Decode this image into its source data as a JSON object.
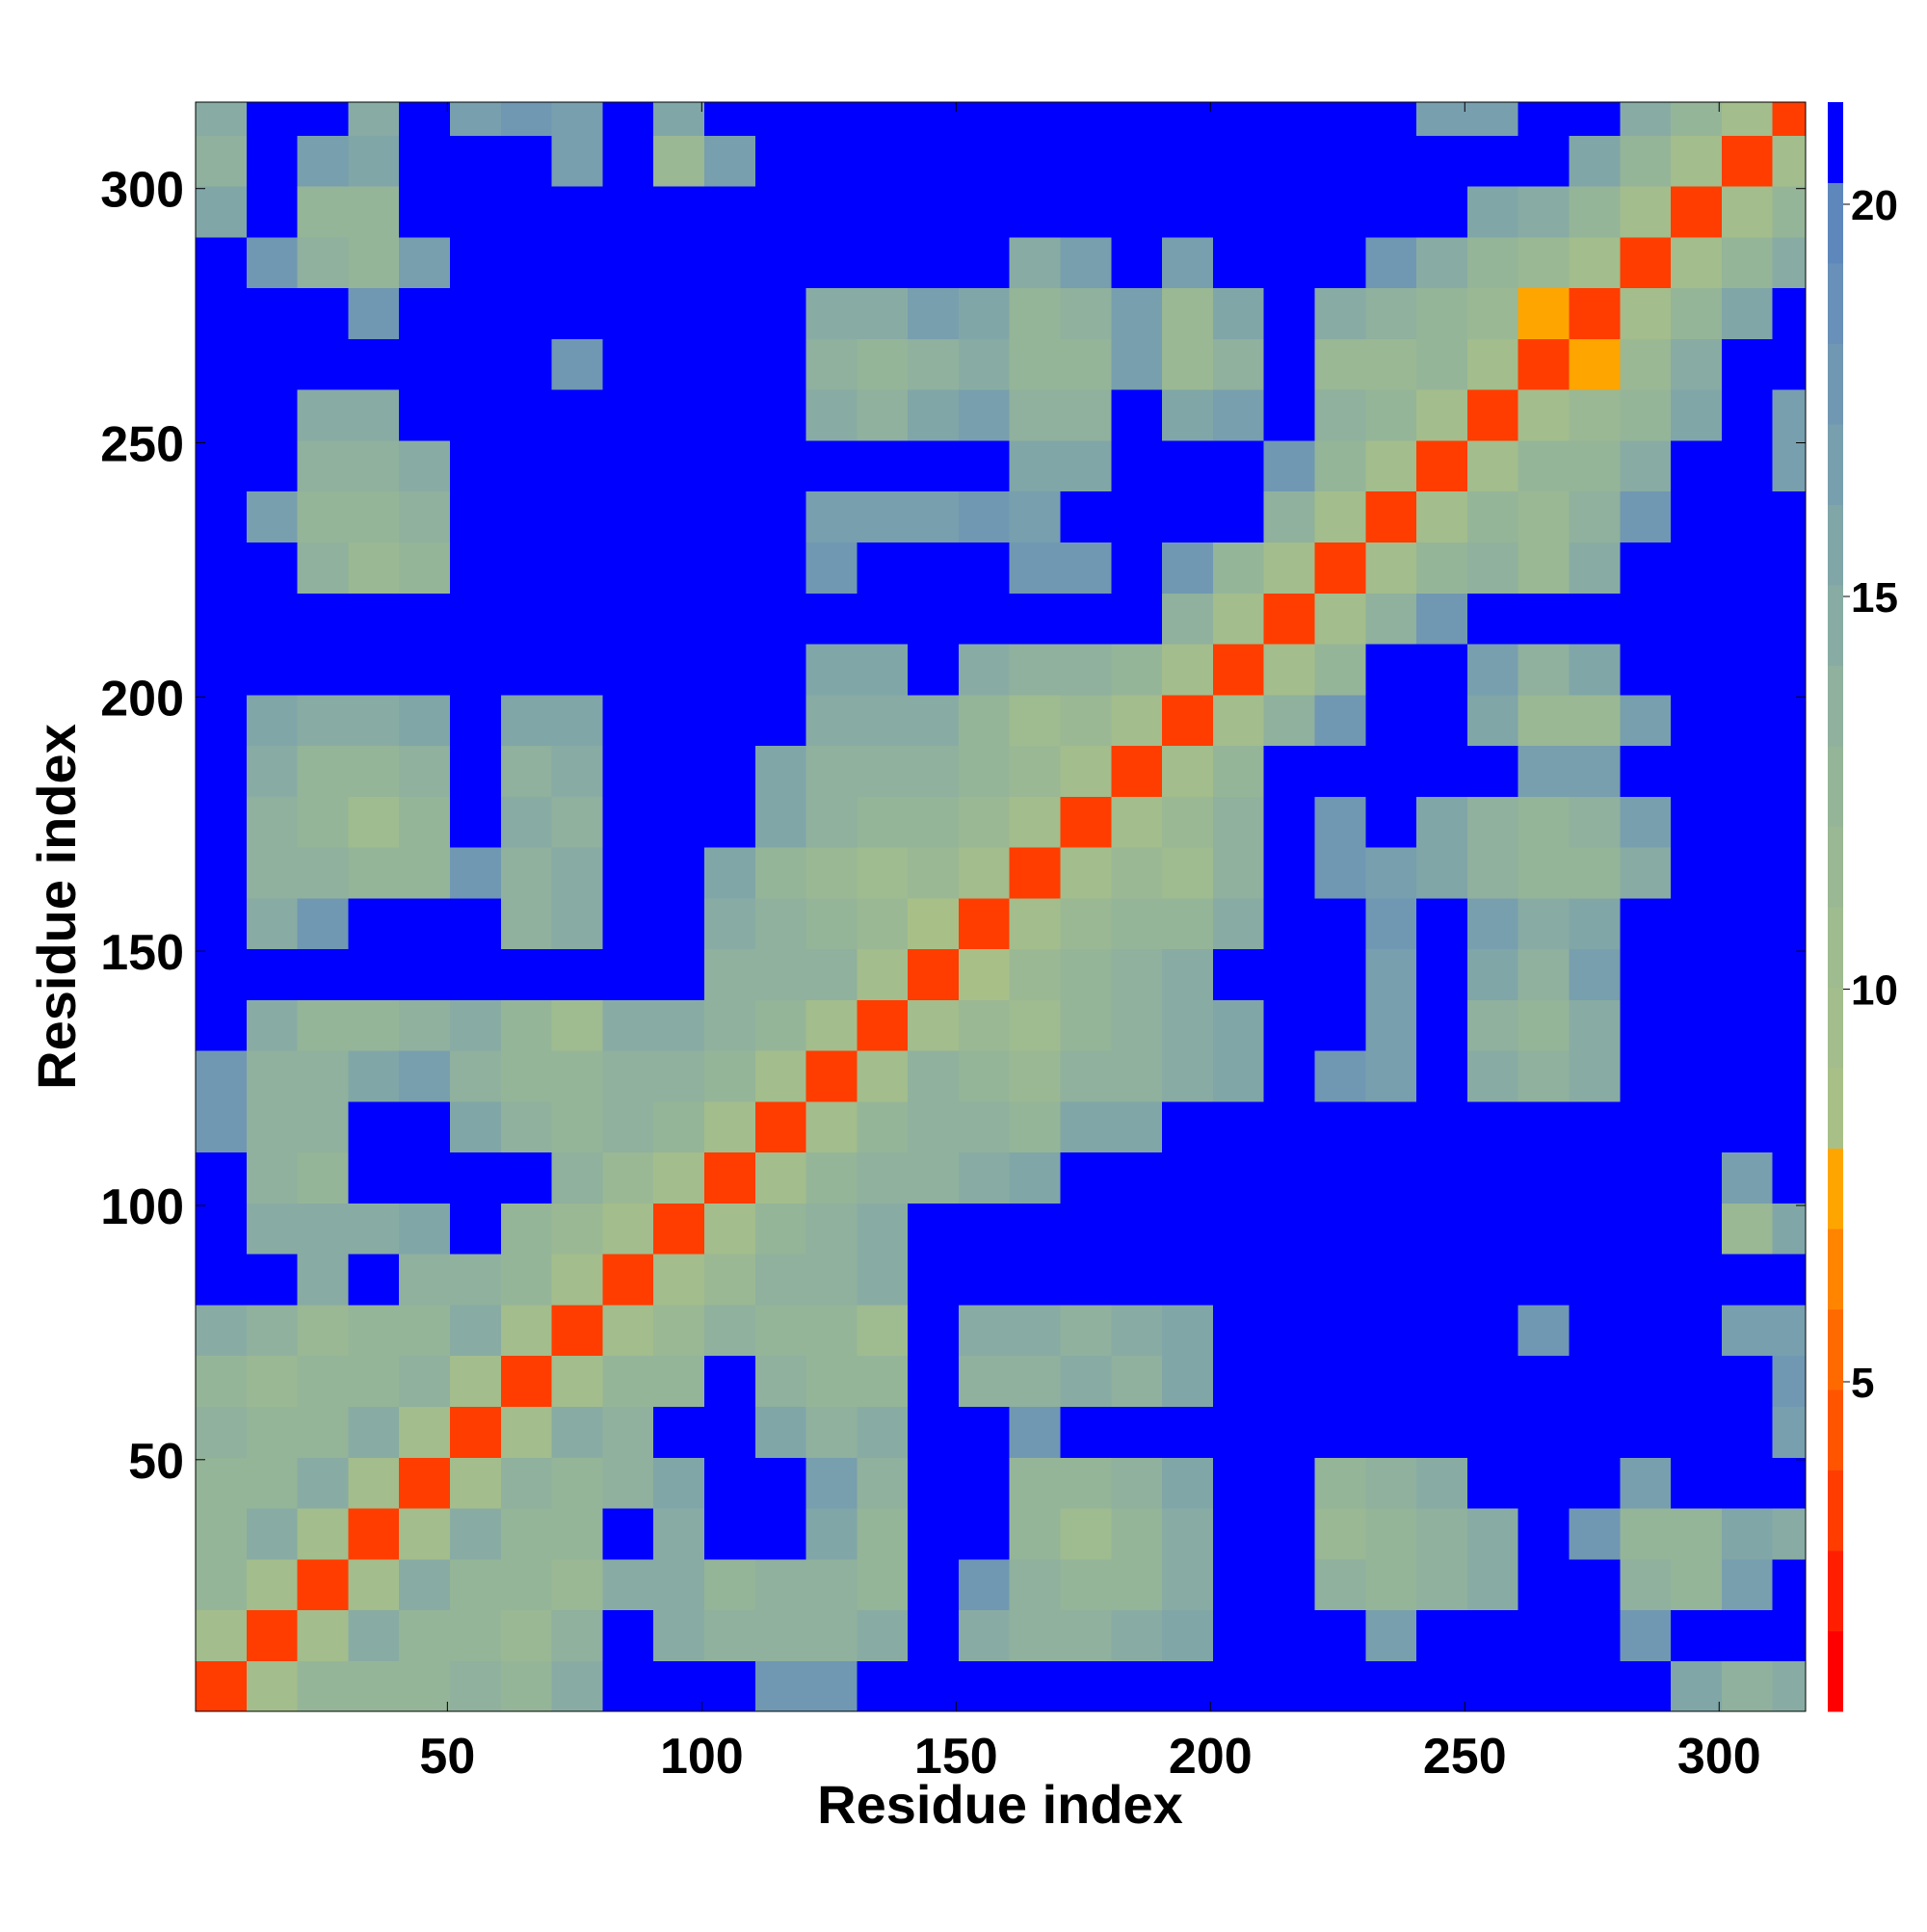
{
  "chart_data": {
    "type": "heatmap",
    "xlabel": "Residue index",
    "ylabel": "Residue index",
    "symmetric": true,
    "x": [
      5.5,
      15.5,
      25.5,
      35.5,
      45.5,
      55.5,
      65.5,
      75.5,
      85.5,
      95.5,
      105.5,
      115.5,
      125.5,
      135.5,
      145.5,
      155.5,
      165.5,
      175.5,
      185.5,
      195.5,
      205.5,
      215.5,
      225.5,
      235.5,
      245.5,
      255.5,
      265.5,
      275.5,
      285.5,
      295.5,
      305.5,
      315.5
    ],
    "y": [
      5.5,
      15.5,
      25.5,
      35.5,
      45.5,
      55.5,
      65.5,
      75.5,
      85.5,
      95.5,
      105.5,
      115.5,
      125.5,
      135.5,
      145.5,
      155.5,
      165.5,
      175.5,
      185.5,
      195.5,
      205.5,
      215.5,
      225.5,
      235.5,
      245.5,
      255.5,
      265.5,
      275.5,
      285.5,
      295.5,
      305.5,
      315.5
    ],
    "values": [
      [
        3,
        10,
        13,
        13,
        13,
        14,
        13,
        15,
        21,
        21,
        21,
        18,
        18,
        21,
        21,
        21,
        21,
        21,
        21,
        21,
        21,
        21,
        21,
        21,
        21,
        21,
        21,
        21,
        21,
        16,
        14,
        15
      ],
      [
        3,
        10,
        15,
        13,
        13,
        12,
        14,
        21,
        15,
        14,
        14,
        14,
        15,
        21,
        15,
        14,
        14,
        15,
        16,
        21,
        21,
        21,
        17,
        21,
        21,
        21,
        21,
        18,
        21,
        21,
        21
      ],
      [
        3,
        10,
        15,
        13,
        13,
        12,
        15,
        15,
        13,
        14,
        14,
        13,
        21,
        18,
        14,
        13,
        13,
        15,
        21,
        21,
        14,
        13,
        14,
        15,
        21,
        21,
        14,
        13,
        17,
        21
      ],
      [
        3,
        10,
        15,
        13,
        13,
        21,
        15,
        21,
        21,
        16,
        13,
        21,
        21,
        13,
        11,
        13,
        15,
        21,
        21,
        12,
        13,
        14,
        15,
        21,
        18,
        13,
        13,
        16,
        15
      ],
      [
        3,
        10,
        14,
        13,
        14,
        16,
        21,
        21,
        17,
        14,
        21,
        21,
        13,
        13,
        14,
        16,
        21,
        21,
        13,
        14,
        15,
        21,
        21,
        21,
        17,
        21,
        21,
        21
      ],
      [
        3,
        10,
        15,
        14,
        21,
        21,
        16,
        14,
        15,
        21,
        21,
        18,
        21,
        21,
        21,
        21,
        21,
        21,
        21,
        21,
        21,
        21,
        21,
        21,
        21,
        21,
        17
      ],
      [
        3,
        10,
        13,
        13,
        21,
        14,
        13,
        13,
        21,
        14,
        14,
        15,
        14,
        16,
        21,
        21,
        21,
        21,
        21,
        21,
        21,
        21,
        21,
        21,
        21,
        18
      ],
      [
        3,
        10,
        12,
        14,
        13,
        13,
        11,
        21,
        15,
        15,
        14,
        15,
        16,
        21,
        21,
        21,
        21,
        21,
        21,
        18,
        21,
        21,
        21,
        17,
        17
      ],
      [
        3,
        10,
        12,
        14,
        14,
        15,
        21,
        21,
        21,
        21,
        21,
        21,
        21,
        21,
        21,
        21,
        21,
        21,
        21,
        21,
        21,
        21,
        21,
        21
      ],
      [
        3,
        10,
        13,
        14,
        15,
        21,
        21,
        21,
        21,
        21,
        21,
        21,
        21,
        21,
        21,
        21,
        21,
        21,
        21,
        21,
        21,
        12,
        16
      ],
      [
        3,
        10,
        13,
        14,
        14,
        15,
        16,
        21,
        21,
        21,
        21,
        21,
        21,
        21,
        21,
        21,
        21,
        21,
        21,
        21,
        17,
        21
      ],
      [
        3,
        10,
        13,
        14,
        14,
        13,
        16,
        16,
        21,
        21,
        21,
        21,
        21,
        21,
        21,
        21,
        21,
        21,
        21,
        21,
        21
      ],
      [
        3,
        10,
        14,
        13,
        12,
        14,
        14,
        15,
        16,
        21,
        18,
        17,
        21,
        15,
        14,
        15,
        21,
        21,
        21,
        21
      ],
      [
        3,
        10,
        12,
        11,
        13,
        14,
        15,
        16,
        21,
        21,
        17,
        21,
        14,
        13,
        15,
        21,
        21,
        21,
        21
      ],
      [
        3,
        8,
        12,
        13,
        14,
        15,
        21,
        21,
        21,
        17,
        21,
        16,
        14,
        17,
        21,
        21,
        21,
        21
      ],
      [
        3,
        10,
        12,
        13,
        13,
        15,
        21,
        21,
        18,
        21,
        17,
        15,
        16,
        21,
        21,
        21,
        21
      ],
      [
        3,
        10,
        12,
        11,
        14,
        21,
        18,
        17,
        16,
        14,
        13,
        13,
        15,
        21,
        21,
        21
      ],
      [
        3,
        10,
        12,
        14,
        21,
        18,
        21,
        16,
        14,
        13,
        14,
        17,
        21,
        21,
        21
      ],
      [
        3,
        10,
        13,
        21,
        21,
        21,
        21,
        21,
        17,
        17,
        21,
        21,
        21,
        21
      ],
      [
        3,
        10,
        14,
        18,
        21,
        21,
        16,
        12,
        12,
        17,
        21,
        21,
        21
      ],
      [
        3,
        10,
        13,
        21,
        21,
        17,
        14,
        16,
        21,
        21,
        21,
        21
      ],
      [
        3,
        10,
        14,
        18,
        21,
        21,
        21,
        21,
        21,
        21,
        21
      ],
      [
        3,
        10,
        13,
        14,
        12,
        15,
        21,
        21,
        21,
        21
      ],
      [
        3,
        10,
        13,
        12,
        14,
        18,
        21,
        21,
        21
      ],
      [
        3,
        10,
        13,
        13,
        15,
        21,
        21,
        17
      ],
      [
        3,
        10,
        12,
        13,
        16,
        21,
        17
      ],
      [
        3,
        7,
        12,
        15,
        21,
        21
      ],
      [
        3,
        10,
        13,
        16,
        21
      ],
      [
        3,
        10,
        13,
        15
      ],
      [
        3,
        10,
        13
      ],
      [
        3,
        10
      ],
      [
        3
      ]
    ],
    "xlim": [
      0.5,
      317
    ],
    "ylim": [
      0.5,
      317
    ],
    "xticks": [
      50,
      100,
      150,
      200,
      250,
      300
    ],
    "yticks": [
      50,
      100,
      150,
      200,
      250,
      300
    ],
    "zlim": [
      0.8,
      21.3
    ],
    "zticks": [
      5,
      10,
      15,
      20
    ],
    "colormap": [
      "#ff0000",
      "#ff1f00",
      "#ff3d00",
      "#ff5500",
      "#ff6a00",
      "#ff8400",
      "#ffa500",
      "#a8c088",
      "#a3bd8c",
      "#9fbb90",
      "#9ab894",
      "#95b598",
      "#8fb19d",
      "#88aca3",
      "#80a6a8",
      "#789fae",
      "#7098b3",
      "#6890b8",
      "#5e88bc",
      "#0000ff"
    ]
  }
}
